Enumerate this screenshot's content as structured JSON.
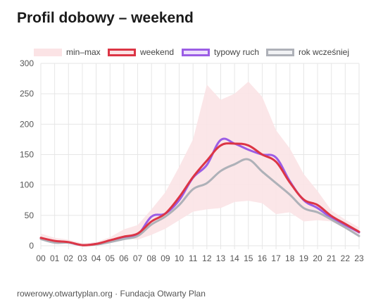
{
  "title": "Profil dobowy – weekend",
  "footer": "rowerowy.otwartyplan.org · Fundacja Otwarty Plan",
  "legend": {
    "band": "min–max",
    "weekend": "weekend",
    "typical": "typowy ruch",
    "prev_year": "rok wcześniej"
  },
  "colors": {
    "band": "#fbe3e5",
    "weekend": "#dc3545",
    "typical": "#9b5de5",
    "typical_fill": "#ede0fb",
    "prev_year": "#aeb1b8",
    "grid": "#e6e6e6",
    "axis_text": "#555555"
  },
  "chart_data": {
    "type": "line",
    "title": "Profil dobowy – weekend",
    "xlabel": "",
    "ylabel": "",
    "ylim": [
      0,
      300
    ],
    "yticks": [
      0,
      50,
      100,
      150,
      200,
      250,
      300
    ],
    "grid": true,
    "legend_position": "top",
    "categories": [
      "00",
      "01",
      "02",
      "03",
      "04",
      "05",
      "06",
      "07",
      "08",
      "09",
      "10",
      "11",
      "12",
      "13",
      "14",
      "15",
      "16",
      "17",
      "18",
      "19",
      "20",
      "21",
      "22",
      "23"
    ],
    "band": {
      "name": "min–max",
      "min": [
        9,
        5,
        4,
        1,
        2,
        6,
        13,
        10,
        18,
        28,
        42,
        56,
        60,
        62,
        72,
        74,
        70,
        52,
        55,
        40,
        42,
        40,
        28,
        18
      ],
      "max": [
        20,
        13,
        10,
        4,
        6,
        14,
        27,
        34,
        60,
        88,
        130,
        175,
        265,
        240,
        250,
        270,
        245,
        190,
        160,
        118,
        90,
        58,
        43,
        30
      ]
    },
    "series": [
      {
        "name": "typowy ruch",
        "values": [
          12,
          7,
          5,
          1,
          3,
          8,
          13,
          18,
          48,
          53,
          75,
          112,
          133,
          174,
          168,
          158,
          150,
          145,
          106,
          75,
          62,
          46,
          34,
          22
        ]
      },
      {
        "name": "rok wcześniej",
        "values": [
          11,
          5,
          5,
          1,
          2,
          6,
          11,
          16,
          35,
          48,
          67,
          93,
          103,
          123,
          134,
          142,
          122,
          103,
          84,
          62,
          55,
          43,
          30,
          16
        ]
      },
      {
        "name": "weekend",
        "values": [
          13,
          8,
          6,
          1,
          3,
          9,
          15,
          20,
          40,
          53,
          80,
          113,
          140,
          165,
          168,
          165,
          150,
          138,
          104,
          76,
          67,
          49,
          36,
          23
        ]
      }
    ]
  }
}
